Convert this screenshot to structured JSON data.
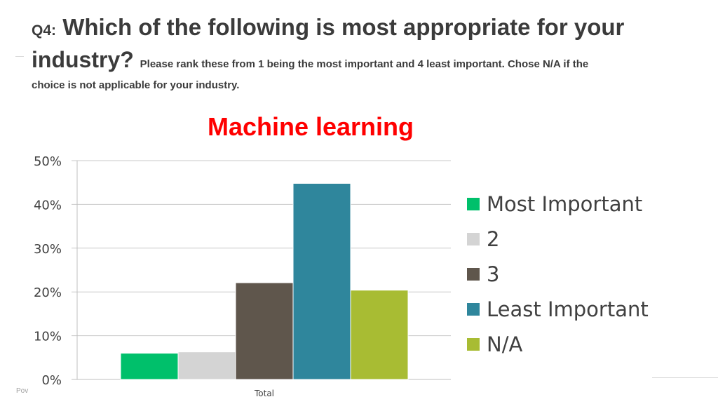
{
  "header": {
    "qnum": "Q4:",
    "question_line1": "Which of the following is most appropriate for your",
    "question_line2": "industry?",
    "note_line1": "Please rank these from 1 being the most important and 4 least important.  Chose N/A if the",
    "note_line2": "choice is not applicable for your industry."
  },
  "footer": {
    "left_text": "Pov"
  },
  "colors": {
    "most_important": "#00c06b",
    "two": "#d4d4d4",
    "three": "#5f564c",
    "least_important": "#2f869c",
    "na": "#a8bc33",
    "title": "#ff0000",
    "gridline": "#c8c8c8"
  },
  "chart_data": {
    "type": "bar",
    "title": "Machine learning",
    "categories": [
      "Total"
    ],
    "series": [
      {
        "name": "Most Important",
        "values": [
          6.0
        ],
        "color": "#00c06b"
      },
      {
        "name": "2",
        "values": [
          6.3
        ],
        "color": "#d4d4d4"
      },
      {
        "name": "3",
        "values": [
          22.1
        ],
        "color": "#5f564c"
      },
      {
        "name": "Least Important",
        "values": [
          44.8
        ],
        "color": "#2f869c"
      },
      {
        "name": "N/A",
        "values": [
          20.4
        ],
        "color": "#a8bc33"
      }
    ],
    "ylim": [
      0,
      50
    ],
    "yticks": [
      "0%",
      "10%",
      "20%",
      "30%",
      "40%",
      "50%"
    ],
    "ytick_values": [
      0,
      10,
      20,
      30,
      40,
      50
    ],
    "xlabel": "",
    "ylabel": "",
    "grid": true,
    "legend": "right"
  }
}
